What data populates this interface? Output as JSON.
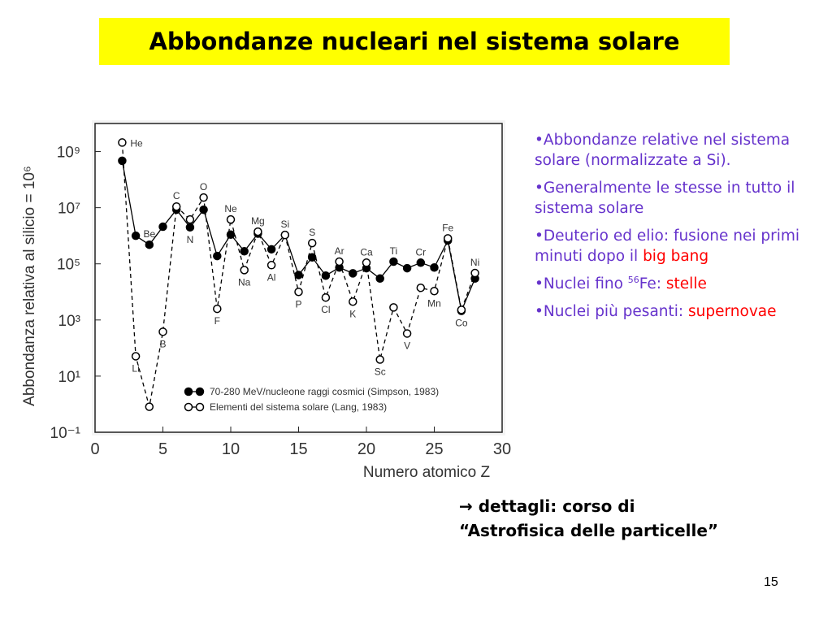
{
  "title": "Abbondanze nucleari nel sistema solare",
  "chart_data": {
    "type": "line",
    "ylabel": "Abbondanza relativa al silicio = 10⁶",
    "xlabel": "Numero atomico Z",
    "x": [
      2,
      3,
      4,
      5,
      6,
      7,
      8,
      9,
      10,
      11,
      12,
      13,
      14,
      15,
      16,
      17,
      18,
      19,
      20,
      21,
      22,
      23,
      24,
      25,
      26,
      27,
      28
    ],
    "series": [
      {
        "name": "70-280 MeV/nucleone raggi cosmici (Simpson, 1983)",
        "color": "#000000",
        "marker": "filled",
        "dash": false,
        "values": [
          470000000.0,
          1000000.0,
          480000.0,
          2100000.0,
          8500000.0,
          2000000.0,
          8500000.0,
          190000.0,
          1100000.0,
          280000.0,
          1200000.0,
          330000.0,
          1070000.0,
          40000.0,
          170000.0,
          38000.0,
          74000.0,
          46000.0,
          70000.0,
          30000.0,
          120000.0,
          70000.0,
          110000.0,
          74000.0,
          680000.0,
          2100.0,
          30000.0
        ]
      },
      {
        "name": "Elementi del sistema solare (Lang, 1983)",
        "color": "#000000",
        "marker": "open",
        "dash": true,
        "values": [
          2100000000.0,
          51,
          0.81,
          380,
          11000000.0,
          3800000.0,
          23000000.0,
          2500.0,
          3800000.0,
          60000.0,
          1400000.0,
          90000.0,
          1070000.0,
          10000.0,
          550000.0,
          6300.0,
          120000.0,
          4500.0,
          110000.0,
          39,
          2800.0,
          330,
          14000.0,
          10700.0,
          810000.0,
          2300.0,
          47000.0
        ]
      }
    ],
    "element_labels": [
      {
        "text": "He",
        "x": 2
      },
      {
        "text": "Li",
        "x": 3
      },
      {
        "text": "Be",
        "x": 4
      },
      {
        "text": "B",
        "x": 5
      },
      {
        "text": "C",
        "x": 6
      },
      {
        "text": "N",
        "x": 7
      },
      {
        "text": "O",
        "x": 8
      },
      {
        "text": "F",
        "x": 9
      },
      {
        "text": "Ne",
        "x": 10
      },
      {
        "text": "Na",
        "x": 11
      },
      {
        "text": "Mg",
        "x": 12
      },
      {
        "text": "Al",
        "x": 13
      },
      {
        "text": "Si",
        "x": 14
      },
      {
        "text": "P",
        "x": 15
      },
      {
        "text": "S",
        "x": 16
      },
      {
        "text": "Cl",
        "x": 17
      },
      {
        "text": "Ar",
        "x": 18
      },
      {
        "text": "K",
        "x": 19
      },
      {
        "text": "Ca",
        "x": 20
      },
      {
        "text": "Sc",
        "x": 21
      },
      {
        "text": "Ti",
        "x": 22
      },
      {
        "text": "V",
        "x": 23
      },
      {
        "text": "Cr",
        "x": 24
      },
      {
        "text": "Mn",
        "x": 25
      },
      {
        "text": "Fe",
        "x": 26
      },
      {
        "text": "Co",
        "x": 27
      },
      {
        "text": "Ni",
        "x": 28
      }
    ],
    "xlim": [
      0,
      30
    ],
    "xticks": [
      0,
      5,
      10,
      15,
      20,
      25,
      30
    ],
    "ylim": [
      0.1,
      10000000000.0
    ],
    "ylog": true,
    "yticks": [
      {
        "value": 1000000000.0,
        "label": "10⁹"
      },
      {
        "value": 10000000.0,
        "label": "10⁷"
      },
      {
        "value": 100000.0,
        "label": "10⁵"
      },
      {
        "value": 1000.0,
        "label": "10³"
      },
      {
        "value": 10,
        "label": "10¹"
      },
      {
        "value": 0.1,
        "label": "10⁻¹"
      }
    ],
    "legend": "bottom-right"
  },
  "bullets": [
    {
      "parts": [
        {
          "text": "•Abbondanze relative nel sistema solare (normalizzate a Si)."
        }
      ]
    },
    {
      "parts": [
        {
          "text": "•Generalmente le stesse in tutto il sistema solare"
        }
      ]
    },
    {
      "parts": [
        {
          "text": "•Deuterio ed elio: fusione nei primi minuti dopo il "
        },
        {
          "text": "big bang",
          "color": "#ff0000"
        }
      ]
    },
    {
      "parts": [
        {
          "text": "•Nuclei fino "
        },
        {
          "text": "56",
          "sup": true
        },
        {
          "text": "Fe: "
        },
        {
          "text": "stelle",
          "color": "#ff0000"
        }
      ]
    },
    {
      "parts": [
        {
          "text": "•Nuclei più pesanti: "
        },
        {
          "text": "supernovae",
          "color": "#ff0000"
        }
      ]
    }
  ],
  "note": {
    "lines": [
      "→ dettagli: corso di",
      "“Astrofisica delle particelle”"
    ]
  },
  "page_number": "15"
}
